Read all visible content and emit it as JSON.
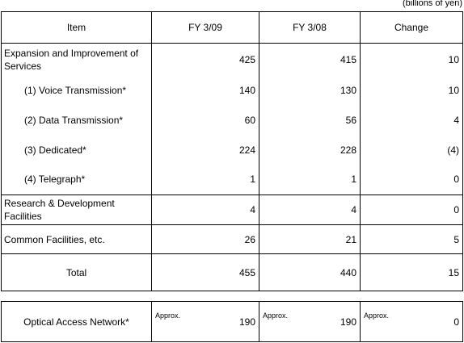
{
  "unit_note": "(billions of yen)",
  "headers": [
    "Item",
    "FY 3/09",
    "FY 3/08",
    "Change"
  ],
  "rows": [
    {
      "item": "Expansion and Improvement of Services",
      "fy09": "425",
      "fy08": "415",
      "change": "10"
    },
    {
      "item": "(1) Voice Transmission*",
      "fy09": "140",
      "fy08": "130",
      "change": "10"
    },
    {
      "item": "(2) Data Transmission*",
      "fy09": "60",
      "fy08": "56",
      "change": "4"
    },
    {
      "item": "(3) Dedicated*",
      "fy09": "224",
      "fy08": "228",
      "change": "(4)"
    },
    {
      "item": "(4) Telegraph*",
      "fy09": "1",
      "fy08": "1",
      "change": "0"
    },
    {
      "item": "Research & Development Facilities",
      "fy09": "4",
      "fy08": "4",
      "change": "0"
    },
    {
      "item": "Common Facilities, etc.",
      "fy09": "26",
      "fy08": "21",
      "change": "5"
    },
    {
      "item": "Total",
      "fy09": "455",
      "fy08": "440",
      "change": "15"
    }
  ],
  "access": {
    "item": "Optical Access Network*",
    "approx_label": "Approx.",
    "fy09": "190",
    "fy08": "190",
    "change": "0"
  }
}
